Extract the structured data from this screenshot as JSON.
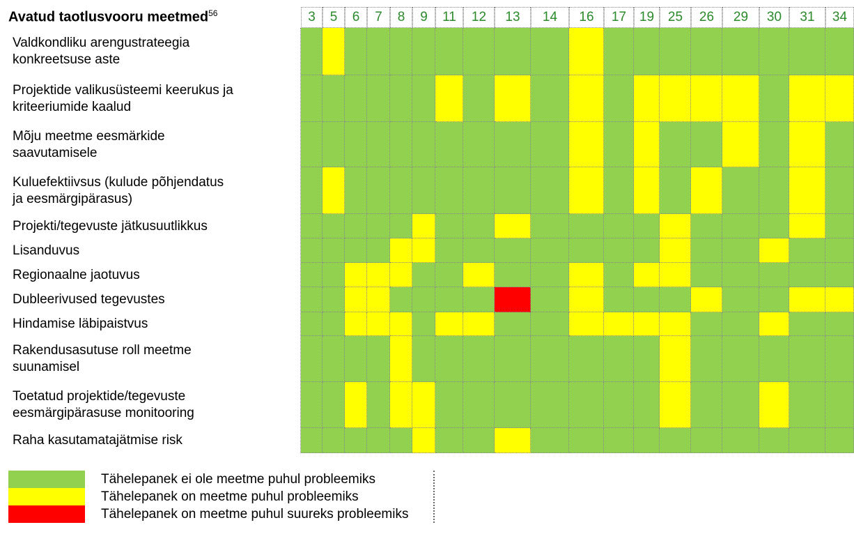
{
  "header": {
    "title": "Avatud taotlusvooru meetmed",
    "footnote": "56"
  },
  "columns": [
    "3",
    "5",
    "6",
    "7",
    "8",
    "9",
    "11",
    "12",
    "13",
    "14",
    "16",
    "17",
    "19",
    "25",
    "26",
    "29",
    "30",
    "31",
    "34"
  ],
  "rows": [
    {
      "label": [
        "Valdkondliku arengustrateegia",
        "konkreetsuse aste"
      ],
      "cells": [
        "#92d050",
        "#ffff00",
        "#92d050",
        "#92d050",
        "#92d050",
        "#92d050",
        "#92d050",
        "#92d050",
        "#92d050",
        "#92d050",
        "#ffff00",
        "#92d050",
        "#92d050",
        "#92d050",
        "#92d050",
        "#92d050",
        "#92d050",
        "#92d050",
        "#92d050"
      ]
    },
    {
      "label": [
        "Projektide valikusüsteemi keerukus ja",
        "kriteeriumide kaalud"
      ],
      "cells": [
        "#92d050",
        "#92d050",
        "#92d050",
        "#92d050",
        "#92d050",
        "#92d050",
        "#ffff00",
        "#92d050",
        "#ffff00",
        "#92d050",
        "#ffff00",
        "#92d050",
        "#ffff00",
        "#ffff00",
        "#ffff00",
        "#ffff00",
        "#92d050",
        "#ffff00",
        "#ffff00"
      ]
    },
    {
      "label": [
        "Mõju meetme eesmärkide",
        "saavutamisele"
      ],
      "cells": [
        "#92d050",
        "#92d050",
        "#92d050",
        "#92d050",
        "#92d050",
        "#92d050",
        "#92d050",
        "#92d050",
        "#92d050",
        "#92d050",
        "#ffff00",
        "#92d050",
        "#ffff00",
        "#92d050",
        "#92d050",
        "#ffff00",
        "#92d050",
        "#ffff00",
        "#92d050"
      ]
    },
    {
      "label": [
        "Kuluefektiivsus (kulude põhjendatus",
        "ja eesmärgipärasus)"
      ],
      "cells": [
        "#92d050",
        "#ffff00",
        "#92d050",
        "#92d050",
        "#92d050",
        "#92d050",
        "#92d050",
        "#92d050",
        "#92d050",
        "#92d050",
        "#ffff00",
        "#92d050",
        "#ffff00",
        "#92d050",
        "#ffff00",
        "#92d050",
        "#92d050",
        "#ffff00",
        "#92d050"
      ]
    },
    {
      "label": [
        "Projekti/tegevuste jätkusuutlikkus"
      ],
      "cells": [
        "#92d050",
        "#92d050",
        "#92d050",
        "#92d050",
        "#92d050",
        "#ffff00",
        "#92d050",
        "#92d050",
        "#ffff00",
        "#92d050",
        "#92d050",
        "#92d050",
        "#92d050",
        "#ffff00",
        "#92d050",
        "#92d050",
        "#92d050",
        "#ffff00",
        "#92d050"
      ]
    },
    {
      "label": [
        "Lisanduvus"
      ],
      "cells": [
        "#92d050",
        "#92d050",
        "#92d050",
        "#92d050",
        "#ffff00",
        "#ffff00",
        "#92d050",
        "#92d050",
        "#92d050",
        "#92d050",
        "#92d050",
        "#92d050",
        "#92d050",
        "#ffff00",
        "#92d050",
        "#92d050",
        "#ffff00",
        "#92d050",
        "#92d050"
      ]
    },
    {
      "label": [
        "Regionaalne jaotuvus"
      ],
      "cells": [
        "#92d050",
        "#92d050",
        "#ffff00",
        "#ffff00",
        "#ffff00",
        "#92d050",
        "#92d050",
        "#ffff00",
        "#92d050",
        "#92d050",
        "#ffff00",
        "#92d050",
        "#ffff00",
        "#ffff00",
        "#92d050",
        "#92d050",
        "#92d050",
        "#92d050",
        "#92d050"
      ]
    },
    {
      "label": [
        "Dubleerivused tegevustes"
      ],
      "cells": [
        "#92d050",
        "#92d050",
        "#ffff00",
        "#ffff00",
        "#92d050",
        "#92d050",
        "#92d050",
        "#92d050",
        "#ff0000",
        "#92d050",
        "#ffff00",
        "#92d050",
        "#92d050",
        "#92d050",
        "#ffff00",
        "#92d050",
        "#92d050",
        "#ffff00",
        "#ffff00"
      ]
    },
    {
      "label": [
        "Hindamise läbipaistvus"
      ],
      "cells": [
        "#92d050",
        "#92d050",
        "#ffff00",
        "#ffff00",
        "#ffff00",
        "#92d050",
        "#ffff00",
        "#ffff00",
        "#92d050",
        "#92d050",
        "#ffff00",
        "#ffff00",
        "#ffff00",
        "#ffff00",
        "#92d050",
        "#92d050",
        "#ffff00",
        "#92d050",
        "#92d050"
      ]
    },
    {
      "label": [
        "Rakendusasutuse roll meetme",
        "suunamisel"
      ],
      "cells": [
        "#92d050",
        "#92d050",
        "#92d050",
        "#92d050",
        "#ffff00",
        "#92d050",
        "#92d050",
        "#92d050",
        "#92d050",
        "#92d050",
        "#92d050",
        "#92d050",
        "#92d050",
        "#ffff00",
        "#92d050",
        "#92d050",
        "#92d050",
        "#92d050",
        "#92d050"
      ]
    },
    {
      "label": [
        "Toetatud projektide/tegevuste",
        "eesmärgipärasuse monitooring"
      ],
      "cells": [
        "#92d050",
        "#92d050",
        "#ffff00",
        "#92d050",
        "#ffff00",
        "#ffff00",
        "#92d050",
        "#92d050",
        "#92d050",
        "#92d050",
        "#92d050",
        "#92d050",
        "#92d050",
        "#ffff00",
        "#92d050",
        "#92d050",
        "#ffff00",
        "#92d050",
        "#92d050"
      ]
    },
    {
      "label": [
        "Raha kasutamatajätmise risk"
      ],
      "cells": [
        "#92d050",
        "#92d050",
        "#92d050",
        "#92d050",
        "#92d050",
        "#ffff00",
        "#92d050",
        "#92d050",
        "#ffff00",
        "#92d050",
        "#92d050",
        "#92d050",
        "#92d050",
        "#92d050",
        "#92d050",
        "#92d050",
        "#92d050",
        "#92d050",
        "#92d050"
      ]
    }
  ],
  "legend": [
    {
      "label": "Tähelepanek ei ole meetme puhul probleemiks",
      "color": "#92d050"
    },
    {
      "label": "Tähelepanek on meetme puhul probleemiks",
      "color": "#ffff00"
    },
    {
      "label": "Tähelepanek on meetme puhul suureks probleemiks",
      "color": "#ff0000"
    }
  ]
}
